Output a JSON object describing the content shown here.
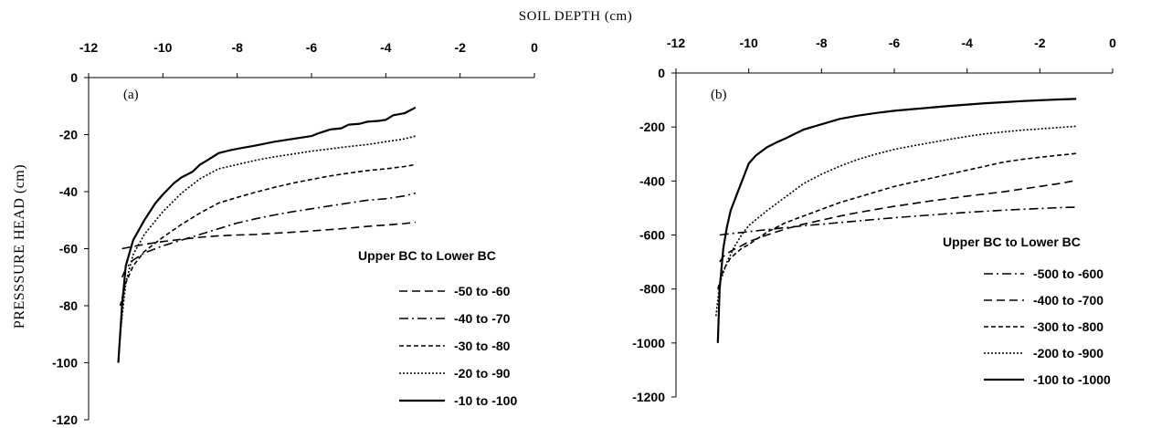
{
  "figure": {
    "xlabel": "SOIL DEPTH (cm)",
    "ylabel": "PRESSSURE HEAD (cm)"
  },
  "chart_data": [
    {
      "type": "line",
      "panel": "(a)",
      "xlim": [
        -12,
        0
      ],
      "ylim": [
        -120,
        0
      ],
      "xticks": [
        -12,
        -10,
        -8,
        -6,
        -4,
        -2,
        0
      ],
      "yticks": [
        0,
        -20,
        -40,
        -60,
        -80,
        -100,
        -120
      ],
      "grid": false,
      "legend_title": "Upper BC to Lower BC",
      "legend_position": "right",
      "series": [
        {
          "name": "-50 to -60",
          "dash": "9,5",
          "x": [
            -11.1,
            -10.9,
            -10.5,
            -10.0,
            -9.5,
            -9.0,
            -8.5,
            -8.0,
            -7.5,
            -7.0,
            -6.5,
            -6.0,
            -5.5,
            -5.0,
            -4.5,
            -4.0,
            -3.5,
            -3.2
          ],
          "y": [
            -60,
            -59.5,
            -58.5,
            -57.5,
            -56.7,
            -56,
            -55.5,
            -55.2,
            -55,
            -54.6,
            -54.2,
            -53.8,
            -53.3,
            -52.8,
            -52.2,
            -51.7,
            -51.2,
            -50.7
          ]
        },
        {
          "name": "-40 to -70",
          "dash": "10,4,2,4",
          "x": [
            -11.1,
            -11.0,
            -10.8,
            -10.5,
            -10.0,
            -9.5,
            -9.0,
            -8.5,
            -8.0,
            -7.5,
            -7.0,
            -6.5,
            -6.0,
            -5.5,
            -5.0,
            -4.5,
            -4.0,
            -3.5,
            -3.2
          ],
          "y": [
            -70,
            -67,
            -64,
            -61.5,
            -59,
            -57,
            -55,
            -53,
            -51,
            -49.5,
            -48.2,
            -47,
            -46,
            -45,
            -44,
            -43,
            -42.5,
            -41.5,
            -40.5
          ]
        },
        {
          "name": "-30 to -80",
          "dash": "5,3",
          "x": [
            -11.15,
            -11.0,
            -10.8,
            -10.5,
            -10.0,
            -9.5,
            -9.0,
            -8.5,
            -8.0,
            -7.5,
            -7.0,
            -6.5,
            -6.0,
            -5.5,
            -5.0,
            -4.5,
            -4.0,
            -3.5,
            -3.2
          ],
          "y": [
            -80,
            -72,
            -66,
            -61,
            -56,
            -51.5,
            -47.5,
            -44,
            -42,
            -40.2,
            -38.5,
            -37,
            -35.7,
            -34.5,
            -33.5,
            -32.6,
            -32,
            -31.2,
            -30.5
          ]
        },
        {
          "name": "-20 to -90",
          "dash": "2,2",
          "x": [
            -11.15,
            -11.0,
            -10.8,
            -10.5,
            -10.0,
            -9.5,
            -9.0,
            -8.5,
            -8.0,
            -7.5,
            -7.0,
            -6.5,
            -6.0,
            -5.5,
            -5.0,
            -4.5,
            -4.0,
            -3.5,
            -3.2
          ],
          "y": [
            -90,
            -72,
            -62,
            -55,
            -47,
            -40.5,
            -35.5,
            -32,
            -30.5,
            -29,
            -27.8,
            -26.8,
            -25.8,
            -25,
            -24.2,
            -23.5,
            -22.5,
            -21.5,
            -20.5
          ]
        },
        {
          "name": "-10 to -100",
          "dash": "",
          "x": [
            -11.2,
            -11.1,
            -11.0,
            -10.8,
            -10.5,
            -10.2,
            -10.0,
            -9.7,
            -9.5,
            -9.2,
            -9.0,
            -8.8,
            -8.5,
            -8.2,
            -8.0,
            -7.5,
            -7.0,
            -6.5,
            -6.0,
            -5.8,
            -5.5,
            -5.2,
            -5.0,
            -4.7,
            -4.5,
            -4.2,
            -4.0,
            -3.8,
            -3.5,
            -3.2
          ],
          "y": [
            -100,
            -80,
            -66,
            -57,
            -50,
            -44,
            -41,
            -37,
            -35,
            -33,
            -30.5,
            -29,
            -26.5,
            -25.5,
            -25,
            -23.8,
            -22.5,
            -21.5,
            -20.5,
            -19.5,
            -18.2,
            -17.8,
            -16.5,
            -16.2,
            -15.5,
            -15.2,
            -14.8,
            -13.2,
            -12.5,
            -10.5
          ]
        }
      ]
    },
    {
      "type": "line",
      "panel": "(b)",
      "xlim": [
        -12,
        0
      ],
      "ylim": [
        -1200,
        0
      ],
      "xticks": [
        -12,
        -10,
        -8,
        -6,
        -4,
        -2,
        0
      ],
      "yticks": [
        0,
        -200,
        -400,
        -600,
        -800,
        -1000,
        -1200
      ],
      "grid": false,
      "legend_title": "Upper BC to Lower BC",
      "legend_position": "right",
      "series": [
        {
          "name": "-500 to -600",
          "dash": "10,4,2,4",
          "x": [
            -10.8,
            -10.5,
            -10.0,
            -9.5,
            -9.0,
            -8.5,
            -8.0,
            -7.5,
            -7.0,
            -6.5,
            -6.0,
            -5.5,
            -5.0,
            -4.5,
            -4.0,
            -3.5,
            -3.0,
            -2.5,
            -2.0,
            -1.5,
            -1.0
          ],
          "y": [
            -600,
            -595,
            -588,
            -580,
            -573,
            -566,
            -560,
            -554,
            -548,
            -542,
            -536,
            -531,
            -526,
            -521,
            -516,
            -512,
            -508,
            -505,
            -502,
            -499,
            -497
          ]
        },
        {
          "name": "-400 to -700",
          "dash": "9,5",
          "x": [
            -10.8,
            -10.7,
            -10.5,
            -10.2,
            -10.0,
            -9.5,
            -9.0,
            -8.5,
            -8.0,
            -7.5,
            -7.0,
            -6.5,
            -6.0,
            -5.5,
            -5.0,
            -4.5,
            -4.0,
            -3.5,
            -3.0,
            -2.5,
            -2.0,
            -1.5,
            -1.0
          ],
          "y": [
            -700,
            -680,
            -660,
            -640,
            -625,
            -600,
            -578,
            -560,
            -545,
            -530,
            -517,
            -505,
            -494,
            -484,
            -474,
            -465,
            -456,
            -448,
            -440,
            -430,
            -420,
            -410,
            -398
          ]
        },
        {
          "name": "-300 to -800",
          "dash": "5,3",
          "x": [
            -10.85,
            -10.7,
            -10.5,
            -10.2,
            -10.0,
            -9.5,
            -9.0,
            -8.5,
            -8.0,
            -7.5,
            -7.0,
            -6.5,
            -6.0,
            -5.5,
            -5.0,
            -4.5,
            -4.0,
            -3.5,
            -3.0,
            -2.5,
            -2.0,
            -1.5,
            -1.0
          ],
          "y": [
            -800,
            -730,
            -685,
            -650,
            -635,
            -590,
            -555,
            -530,
            -505,
            -480,
            -460,
            -440,
            -420,
            -405,
            -390,
            -375,
            -360,
            -345,
            -330,
            -320,
            -312,
            -305,
            -298
          ]
        },
        {
          "name": "-200 to -900",
          "dash": "2,2",
          "x": [
            -10.9,
            -10.8,
            -10.6,
            -10.4,
            -10.2,
            -10.0,
            -9.5,
            -9.0,
            -8.5,
            -8.0,
            -7.5,
            -7.0,
            -6.5,
            -6.0,
            -5.5,
            -5.0,
            -4.5,
            -4.0,
            -3.5,
            -3.0,
            -2.5,
            -2.0,
            -1.5,
            -1.0
          ],
          "y": [
            -900,
            -780,
            -700,
            -645,
            -600,
            -565,
            -510,
            -460,
            -410,
            -375,
            -345,
            -320,
            -300,
            -283,
            -270,
            -258,
            -246,
            -235,
            -225,
            -218,
            -212,
            -207,
            -202,
            -197
          ]
        },
        {
          "name": "-100 to -1000",
          "dash": "",
          "x": [
            -10.85,
            -10.8,
            -10.7,
            -10.6,
            -10.5,
            -10.3,
            -10.1,
            -10.0,
            -9.8,
            -9.5,
            -9.2,
            -9.0,
            -8.5,
            -8.0,
            -7.5,
            -7.0,
            -6.5,
            -6.0,
            -5.5,
            -5.0,
            -4.5,
            -4.0,
            -3.5,
            -3.0,
            -2.5,
            -2.0,
            -1.5,
            -1.0
          ],
          "y": [
            -1000,
            -800,
            -650,
            -570,
            -510,
            -440,
            -370,
            -335,
            -305,
            -275,
            -255,
            -243,
            -210,
            -190,
            -170,
            -158,
            -148,
            -140,
            -134,
            -128,
            -122,
            -117,
            -112,
            -108,
            -104,
            -101,
            -98,
            -96
          ]
        }
      ]
    }
  ]
}
